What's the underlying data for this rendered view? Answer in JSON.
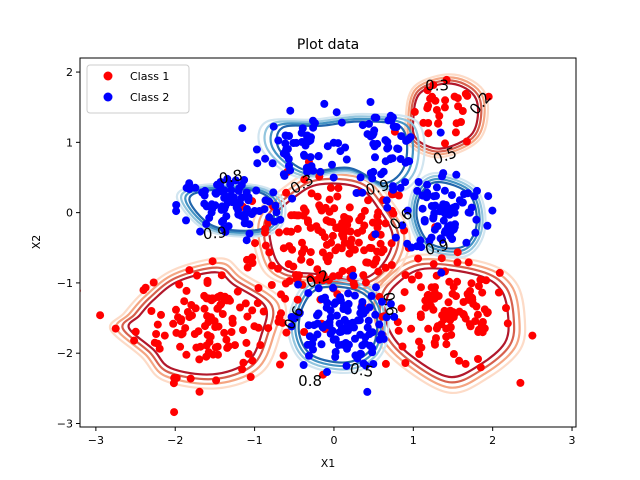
{
  "chart_data": {
    "type": "scatter",
    "title": "Plot data",
    "xlabel": "X1",
    "ylabel": "X2",
    "xlim": [
      -3.2,
      3.05
    ],
    "ylim": [
      -3.05,
      2.2
    ],
    "xticks": [
      -3,
      -2,
      -1,
      0,
      1,
      2,
      3
    ],
    "yticks": [
      -3,
      -2,
      -1,
      0,
      1,
      2
    ],
    "legend": {
      "placement": "top-left"
    },
    "colors": {
      "class1": "#ff0000",
      "class2": "#0000ff",
      "contour_red_dark": "#b2182b",
      "contour_red": "#d6604d",
      "contour_red_light": "#f4a582",
      "contour_red_pale": "#fddbc7",
      "contour_blue_dark": "#2166ac",
      "contour_blue": "#4393c3",
      "contour_blue_light": "#92c5de",
      "contour_blue_pale": "#d1e5f0"
    },
    "series": [
      {
        "name": "Class 1",
        "color": "#ff0000",
        "clusters": [
          {
            "cx": 0.0,
            "cy": -0.4,
            "sx": 0.5,
            "sy": 0.45,
            "n": 170
          },
          {
            "cx": -1.5,
            "cy": -1.55,
            "sx": 0.5,
            "sy": 0.38,
            "n": 130
          },
          {
            "cx": 1.45,
            "cy": -1.45,
            "sx": 0.4,
            "sy": 0.38,
            "n": 110
          },
          {
            "cx": 1.35,
            "cy": 1.35,
            "sx": 0.22,
            "sy": 0.22,
            "n": 30
          }
        ],
        "points": [
          [
            -2.75,
            -1.65
          ],
          [
            -2.3,
            -1.4
          ],
          [
            2.5,
            -1.75
          ],
          [
            1.85,
            -2.2
          ],
          [
            1.95,
            1.65
          ]
        ]
      },
      {
        "name": "Class 2",
        "color": "#0000ff",
        "clusters": [
          {
            "cx": -0.3,
            "cy": 0.95,
            "sx": 0.3,
            "sy": 0.25,
            "n": 55
          },
          {
            "cx": 0.65,
            "cy": 0.9,
            "sx": 0.22,
            "sy": 0.3,
            "n": 55
          },
          {
            "cx": -1.3,
            "cy": 0.1,
            "sx": 0.33,
            "sy": 0.22,
            "n": 90
          },
          {
            "cx": 1.4,
            "cy": 0.0,
            "sx": 0.25,
            "sy": 0.3,
            "n": 80
          },
          {
            "cx": 0.05,
            "cy": -1.6,
            "sx": 0.3,
            "sy": 0.3,
            "n": 110
          }
        ],
        "points": [
          [
            0.42,
            -2.55
          ],
          [
            -0.55,
            1.45
          ],
          [
            -0.25,
            -1.6
          ]
        ]
      }
    ],
    "contours": {
      "class1": [
        [
          [
            -1.2,
            -0.95
          ],
          [
            -1.45,
            -0.75
          ],
          [
            -2.0,
            -0.9
          ],
          [
            -2.35,
            -1.2
          ],
          [
            -2.55,
            -1.45
          ],
          [
            -2.7,
            -1.65
          ],
          [
            -2.35,
            -2.0
          ],
          [
            -2.1,
            -2.3
          ],
          [
            -1.5,
            -2.4
          ],
          [
            -1.0,
            -2.2
          ],
          [
            -0.8,
            -1.75
          ],
          [
            -0.75,
            -1.3
          ],
          [
            -1.2,
            -0.95
          ]
        ],
        [
          [
            0.7,
            -0.95
          ],
          [
            1.1,
            -0.7
          ],
          [
            1.85,
            -0.8
          ],
          [
            2.2,
            -1.05
          ],
          [
            2.3,
            -1.5
          ],
          [
            2.25,
            -1.9
          ],
          [
            1.9,
            -2.25
          ],
          [
            1.45,
            -2.45
          ],
          [
            0.9,
            -2.1
          ],
          [
            0.6,
            -1.7
          ],
          [
            0.55,
            -1.25
          ],
          [
            0.7,
            -0.95
          ]
        ],
        [
          [
            -0.85,
            -0.65
          ],
          [
            -0.9,
            -0.1
          ],
          [
            -0.55,
            0.3
          ],
          [
            -0.2,
            0.5
          ],
          [
            0.35,
            0.45
          ],
          [
            0.65,
            0.1
          ],
          [
            0.85,
            -0.35
          ],
          [
            0.7,
            -0.8
          ],
          [
            0.35,
            -1.05
          ],
          [
            -0.25,
            -0.95
          ],
          [
            -0.65,
            -0.9
          ],
          [
            -0.85,
            -0.65
          ]
        ],
        [
          [
            0.95,
            1.3
          ],
          [
            1.05,
            1.75
          ],
          [
            1.5,
            1.9
          ],
          [
            1.85,
            1.65
          ],
          [
            1.8,
            1.1
          ],
          [
            1.35,
            0.85
          ],
          [
            1.0,
            1.0
          ],
          [
            0.95,
            1.3
          ]
        ]
      ],
      "class2": [
        [
          [
            -0.8,
            0.9
          ],
          [
            -0.75,
            1.25
          ],
          [
            -0.2,
            1.28
          ],
          [
            0.35,
            1.35
          ],
          [
            0.95,
            1.25
          ],
          [
            1.0,
            0.65
          ],
          [
            0.7,
            0.35
          ],
          [
            0.2,
            0.6
          ],
          [
            -0.4,
            0.55
          ],
          [
            -0.8,
            0.9
          ]
        ],
        [
          [
            -1.9,
            0.2
          ],
          [
            -1.65,
            0.35
          ],
          [
            -1.0,
            0.35
          ],
          [
            -0.7,
            0.15
          ],
          [
            -0.75,
            -0.2
          ],
          [
            -1.1,
            -0.3
          ],
          [
            -1.6,
            -0.2
          ],
          [
            -1.9,
            0.2
          ]
        ],
        [
          [
            1.05,
            0.3
          ],
          [
            1.3,
            0.5
          ],
          [
            1.75,
            0.3
          ],
          [
            1.85,
            -0.2
          ],
          [
            1.65,
            -0.55
          ],
          [
            1.2,
            -0.5
          ],
          [
            1.0,
            -0.1
          ],
          [
            1.05,
            0.3
          ]
        ],
        [
          [
            -0.45,
            -1.3
          ],
          [
            -0.2,
            -1.0
          ],
          [
            0.35,
            -1.05
          ],
          [
            0.6,
            -1.4
          ],
          [
            0.55,
            -1.95
          ],
          [
            0.2,
            -2.2
          ],
          [
            -0.3,
            -2.1
          ],
          [
            -0.5,
            -1.75
          ],
          [
            -0.45,
            -1.3
          ]
        ]
      ]
    },
    "contour_labels": [
      {
        "text": "0.3",
        "x": 1.3,
        "y": 1.8,
        "color": "#d6604d",
        "rot": 0
      },
      {
        "text": "0.2",
        "x": 1.85,
        "y": 1.55,
        "color": "#d6604d",
        "rot": -50
      },
      {
        "text": "0.5",
        "x": 1.4,
        "y": 0.8,
        "color": "#d6604d",
        "rot": -20
      },
      {
        "text": "0.8",
        "x": -1.3,
        "y": 0.5,
        "color": "#2166ac",
        "rot": -10
      },
      {
        "text": "0.3",
        "x": -0.4,
        "y": 0.4,
        "color": "#2166ac",
        "rot": -30
      },
      {
        "text": "0.9",
        "x": 0.55,
        "y": 0.35,
        "color": "#2166ac",
        "rot": -15
      },
      {
        "text": "0.6",
        "x": 0.85,
        "y": -0.1,
        "color": "#2166ac",
        "rot": -40
      },
      {
        "text": "0.9",
        "x": 1.3,
        "y": -0.5,
        "color": "#2166ac",
        "rot": -15
      },
      {
        "text": "0.9",
        "x": -1.5,
        "y": -0.3,
        "color": "#2166ac",
        "rot": -5
      },
      {
        "text": "0.2",
        "x": -0.2,
        "y": -0.95,
        "color": "#d6604d",
        "rot": -25
      },
      {
        "text": "0.6",
        "x": -0.5,
        "y": -1.5,
        "color": "#d6604d",
        "rot": -60
      },
      {
        "text": "0.6",
        "x": 0.7,
        "y": -1.3,
        "color": "#2166ac",
        "rot": 80
      },
      {
        "text": "0.8",
        "x": -0.3,
        "y": -2.4,
        "color": "#2166ac",
        "rot": 0
      },
      {
        "text": "0.5",
        "x": 0.35,
        "y": -2.25,
        "color": "#2166ac",
        "rot": 10
      }
    ]
  }
}
